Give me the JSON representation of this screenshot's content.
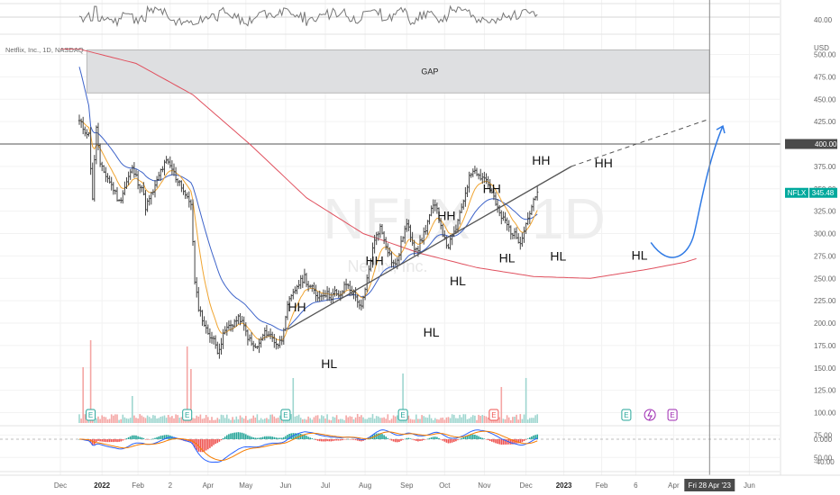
{
  "chart_data": {
    "type": "candlestick",
    "symbol_line": "Netflix, Inc., 1D, NASDAQ",
    "watermark": {
      "symbol": "NFLX",
      "interval": "1D",
      "name": "Netflix, Inc."
    },
    "currency": "USD",
    "ylim": [
      -50,
      540
    ],
    "price_ticks": [
      "500.00",
      "475.00",
      "450.00",
      "425.00",
      "375.00",
      "350.00",
      "325.00",
      "300.00",
      "275.00",
      "250.00",
      "225.00",
      "200.00",
      "175.00",
      "150.00",
      "125.00",
      "100.00",
      "75.00",
      "50.00"
    ],
    "resistance_level": {
      "value": 400,
      "label": "400.00"
    },
    "current_price": {
      "symbol": "NFLX",
      "value": 345.48,
      "label": "345.48"
    },
    "rsi_tick": "40.00",
    "macd_ticks": [
      "0.000",
      "-40.00"
    ],
    "x_ticks": [
      {
        "label": "Dec",
        "bar": -10,
        "bold": false
      },
      {
        "label": "2022",
        "bar": 12,
        "bold": true
      },
      {
        "label": "Feb",
        "bar": 31,
        "bold": false
      },
      {
        "label": "2",
        "bar": 48,
        "bold": false
      },
      {
        "label": "Apr",
        "bar": 68,
        "bold": false
      },
      {
        "label": "May",
        "bar": 88,
        "bold": false
      },
      {
        "label": "Jun",
        "bar": 109,
        "bold": false
      },
      {
        "label": "Jul",
        "bar": 130,
        "bold": false
      },
      {
        "label": "Aug",
        "bar": 151,
        "bold": false
      },
      {
        "label": "Sep",
        "bar": 173,
        "bold": false
      },
      {
        "label": "Oct",
        "bar": 193,
        "bold": false
      },
      {
        "label": "Nov",
        "bar": 214,
        "bold": false
      },
      {
        "label": "Dec",
        "bar": 236,
        "bold": false
      },
      {
        "label": "2023",
        "bar": 256,
        "bold": true
      },
      {
        "label": "Feb",
        "bar": 276,
        "bold": false
      },
      {
        "label": "6",
        "bar": 294,
        "bold": false
      },
      {
        "label": "Apr",
        "bar": 314,
        "bold": false
      },
      {
        "label": "Jun",
        "bar": 354,
        "bold": false
      }
    ],
    "crosshair": {
      "bar": 333,
      "label": "Fri 28 Apr '23"
    },
    "price_anchors": [
      [
        0,
        425
      ],
      [
        2,
        418
      ],
      [
        5,
        410
      ],
      [
        7,
        340
      ],
      [
        9,
        420
      ],
      [
        11,
        375
      ],
      [
        15,
        362
      ],
      [
        18,
        350
      ],
      [
        21,
        335
      ],
      [
        24,
        352
      ],
      [
        26,
        363
      ],
      [
        28,
        372
      ],
      [
        31,
        358
      ],
      [
        33,
        352
      ],
      [
        35,
        330
      ],
      [
        37,
        338
      ],
      [
        40,
        352
      ],
      [
        43,
        370
      ],
      [
        46,
        380
      ],
      [
        49,
        372
      ],
      [
        51,
        362
      ],
      [
        53,
        358
      ],
      [
        55,
        348
      ],
      [
        57,
        338
      ],
      [
        59,
        335
      ],
      [
        61,
        244
      ],
      [
        63,
        218
      ],
      [
        65,
        205
      ],
      [
        67,
        192
      ],
      [
        69,
        187
      ],
      [
        71,
        180
      ],
      [
        73,
        170
      ],
      [
        75,
        178
      ],
      [
        77,
        192
      ],
      [
        79,
        196
      ],
      [
        81,
        200
      ],
      [
        83,
        203
      ],
      [
        85,
        205
      ],
      [
        87,
        195
      ],
      [
        89,
        185
      ],
      [
        91,
        176
      ],
      [
        93,
        172
      ],
      [
        95,
        176
      ],
      [
        97,
        186
      ],
      [
        99,
        190
      ],
      [
        101,
        186
      ],
      [
        103,
        180
      ],
      [
        105,
        176
      ],
      [
        107,
        182
      ],
      [
        109,
        210
      ],
      [
        111,
        224
      ],
      [
        113,
        232
      ],
      [
        115,
        242
      ],
      [
        117,
        246
      ],
      [
        119,
        252
      ],
      [
        121,
        242
      ],
      [
        123,
        238
      ],
      [
        125,
        232
      ],
      [
        127,
        230
      ],
      [
        129,
        234
      ],
      [
        131,
        232
      ],
      [
        133,
        230
      ],
      [
        135,
        234
      ],
      [
        137,
        228
      ],
      [
        139,
        236
      ],
      [
        141,
        244
      ],
      [
        143,
        238
      ],
      [
        145,
        232
      ],
      [
        147,
        226
      ],
      [
        149,
        216
      ],
      [
        151,
        236
      ],
      [
        153,
        260
      ],
      [
        155,
        282
      ],
      [
        157,
        300
      ],
      [
        159,
        306
      ],
      [
        161,
        295
      ],
      [
        163,
        282
      ],
      [
        165,
        270
      ],
      [
        167,
        264
      ],
      [
        169,
        278
      ],
      [
        171,
        298
      ],
      [
        173,
        310
      ],
      [
        175,
        298
      ],
      [
        177,
        286
      ],
      [
        179,
        284
      ],
      [
        181,
        294
      ],
      [
        183,
        306
      ],
      [
        185,
        320
      ],
      [
        187,
        330
      ],
      [
        189,
        326
      ],
      [
        191,
        310
      ],
      [
        193,
        292
      ],
      [
        195,
        286
      ],
      [
        197,
        295
      ],
      [
        199,
        306
      ],
      [
        201,
        320
      ],
      [
        203,
        338
      ],
      [
        205,
        355
      ],
      [
        207,
        368
      ],
      [
        209,
        374
      ],
      [
        211,
        364
      ],
      [
        213,
        364
      ],
      [
        215,
        360
      ],
      [
        217,
        350
      ],
      [
        219,
        340
      ],
      [
        221,
        326
      ],
      [
        223,
        318
      ],
      [
        225,
        314
      ],
      [
        227,
        306
      ],
      [
        229,
        300
      ],
      [
        231,
        296
      ],
      [
        233,
        292
      ],
      [
        235,
        305
      ],
      [
        237,
        318
      ],
      [
        239,
        330
      ],
      [
        241,
        340
      ],
      [
        242,
        345.48
      ]
    ],
    "volume_spikes": [
      [
        2,
        62
      ],
      [
        6,
        92
      ],
      [
        28,
        30
      ],
      [
        57,
        85
      ],
      [
        59,
        60
      ],
      [
        113,
        50
      ],
      [
        171,
        55
      ],
      [
        223,
        40
      ],
      [
        236,
        50
      ]
    ],
    "earnings_markers": [
      6,
      57,
      109,
      171,
      219,
      289
    ],
    "dividend_marker": 291,
    "annotations": [
      {
        "text": "GAP",
        "type": "zone",
        "bar_from": 4,
        "bar_to": 333,
        "from": 457,
        "to": 505
      },
      {
        "text": "HH",
        "bar": 115,
        "price": 213
      },
      {
        "text": "HL",
        "bar": 132,
        "price": 150
      },
      {
        "text": "HH",
        "bar": 156,
        "price": 265
      },
      {
        "text": "HL",
        "bar": 186,
        "price": 185
      },
      {
        "text": "HH",
        "bar": 194,
        "price": 315
      },
      {
        "text": "HL",
        "bar": 200,
        "price": 242
      },
      {
        "text": "HH",
        "bar": 218,
        "price": 345
      },
      {
        "text": "HL",
        "bar": 226,
        "price": 268
      },
      {
        "text": "HH",
        "bar": 244,
        "price": 377
      },
      {
        "text": "HL",
        "bar": 253,
        "price": 270
      },
      {
        "text": "HH",
        "bar": 277,
        "price": 374
      },
      {
        "text": "HL",
        "bar": 296,
        "price": 271
      }
    ],
    "trendline": {
      "from": [
        110,
        193
      ],
      "to": [
        260,
        375
      ],
      "extend_to": [
        333,
        428
      ]
    },
    "projection": [
      [
        302,
        290
      ],
      [
        312,
        270
      ],
      [
        322,
        300
      ],
      [
        332,
        380
      ],
      [
        340,
        420
      ]
    ],
    "sma_long_anchors": [
      [
        0,
        506
      ],
      [
        30,
        490
      ],
      [
        60,
        455
      ],
      [
        90,
        400
      ],
      [
        120,
        340
      ],
      [
        150,
        300
      ],
      [
        180,
        278
      ],
      [
        210,
        262
      ],
      [
        240,
        252
      ],
      [
        270,
        250
      ],
      [
        300,
        260
      ],
      [
        320,
        268
      ],
      [
        326,
        272
      ]
    ],
    "colors": {
      "up": "#26a69a",
      "down": "#ef5350",
      "bars": "#444444",
      "ema_fast": "#f0a430",
      "ema_mid": "#3d63c9",
      "sma_long": "#e0505e",
      "rsi": "#777777",
      "projection": "#2f7ae5",
      "accent": "#00a99d"
    }
  }
}
